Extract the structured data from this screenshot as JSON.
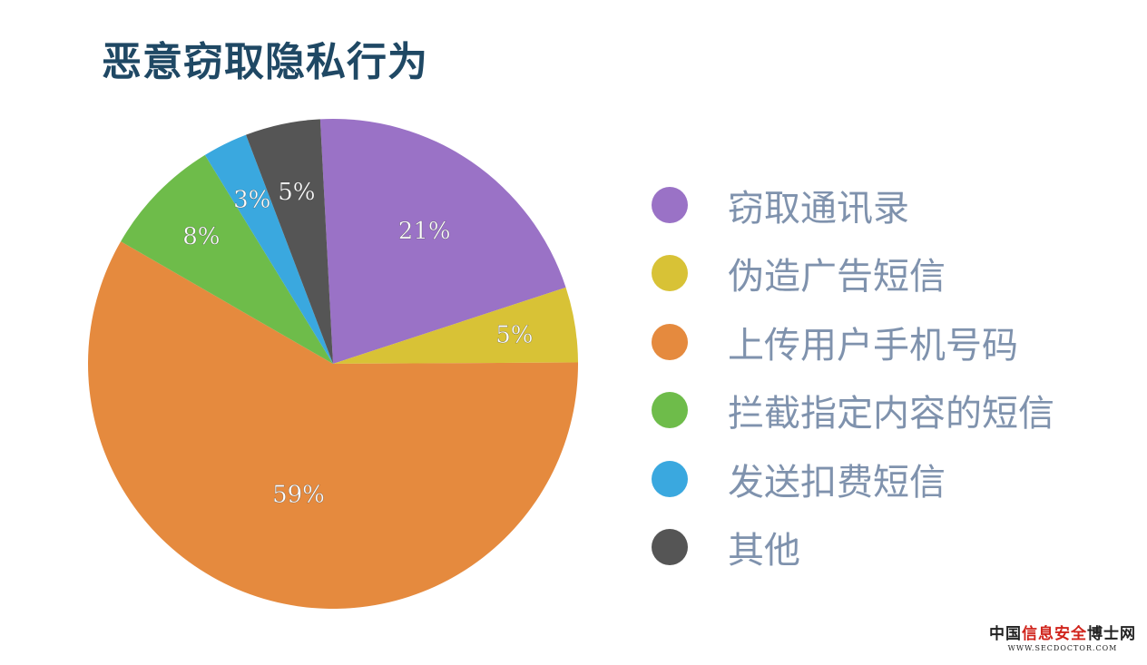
{
  "header": {
    "title": "恶意窃取隐私行为"
  },
  "chart_data": {
    "type": "pie",
    "title": "",
    "slices": [
      {
        "label": "窃取通讯录",
        "value": 21,
        "display": "21%",
        "color": "#9a72c6"
      },
      {
        "label": "伪造广告短信",
        "value": 5,
        "display": "5%",
        "color": "#d8c236"
      },
      {
        "label": "上传用户手机号码",
        "value": 59,
        "display": "59%",
        "color": "#e58a3e"
      },
      {
        "label": "拦截指定内容的短信",
        "value": 8,
        "display": "8%",
        "color": "#6ebc4a"
      },
      {
        "label": "发送扣费短信",
        "value": 3,
        "display": "3%",
        "color": "#3aa8df"
      },
      {
        "label": "其他",
        "value": 5,
        "display": "5%",
        "color": "#555555"
      }
    ],
    "legend_position": "right"
  },
  "watermark": {
    "part1": "中国",
    "part2": "信息安全",
    "part3": "博士网",
    "url": "WWW.SECDOCTOR.COM"
  }
}
